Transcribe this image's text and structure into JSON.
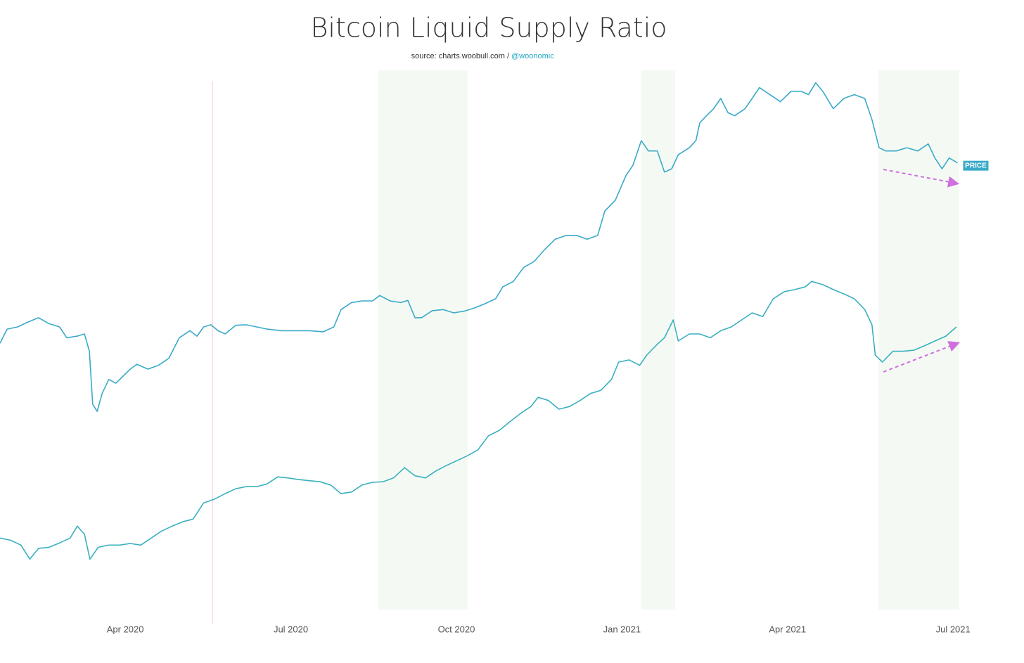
{
  "chart_data": {
    "type": "line",
    "title": "Bitcoin Liquid Supply Ratio",
    "source": "source: charts.woobull.com /",
    "source_handle": "@woonomic",
    "xlim": [
      1.73,
      19.38
    ],
    "ylim": [
      0,
      100
    ],
    "xticks": [
      {
        "value": 4,
        "label": "Apr 2020"
      },
      {
        "value": 7,
        "label": "Jul 2020"
      },
      {
        "value": 10,
        "label": "Oct 2020"
      },
      {
        "value": 13,
        "label": "Jan 2021"
      },
      {
        "value": 16,
        "label": "Apr 2021"
      },
      {
        "value": 19,
        "label": "Jul 2021"
      }
    ],
    "series": [
      {
        "name": "PRICE",
        "color": "#3aaac9",
        "x": [
          1.73,
          1.86,
          2.05,
          2.24,
          2.43,
          2.62,
          2.81,
          2.94,
          3.13,
          3.26,
          3.35,
          3.41,
          3.49,
          3.58,
          3.7,
          3.83,
          3.96,
          4.09,
          4.21,
          4.41,
          4.6,
          4.79,
          4.98,
          5.17,
          5.3,
          5.42,
          5.55,
          5.68,
          5.81,
          6.0,
          6.19,
          6.38,
          6.57,
          6.83,
          7.08,
          7.34,
          7.59,
          7.78,
          7.91,
          8.1,
          8.29,
          8.48,
          8.61,
          8.8,
          8.99,
          9.12,
          9.25,
          9.37,
          9.56,
          9.76,
          9.95,
          10.14,
          10.33,
          10.52,
          10.71,
          10.84,
          11.03,
          11.22,
          11.41,
          11.6,
          11.79,
          11.99,
          12.18,
          12.37,
          12.56,
          12.69,
          12.88,
          13.07,
          13.2,
          13.35,
          13.48,
          13.64,
          13.77,
          13.9,
          14.02,
          14.22,
          14.34,
          14.41,
          14.53,
          14.66,
          14.79,
          14.92,
          15.04,
          15.23,
          15.36,
          15.49,
          15.68,
          15.87,
          16.06,
          16.25,
          16.38,
          16.51,
          16.64,
          16.83,
          17.02,
          17.21,
          17.4,
          17.53,
          17.66,
          17.78,
          17.97,
          18.16,
          18.36,
          18.55,
          18.67,
          18.8,
          18.93,
          19.08
        ],
        "values": [
          49.6,
          52.2,
          52.6,
          53.5,
          54.3,
          53.2,
          52.6,
          50.6,
          50.9,
          51.3,
          48.1,
          38.3,
          37.0,
          40.3,
          42.9,
          42.2,
          43.5,
          44.8,
          45.7,
          44.8,
          45.5,
          46.8,
          50.6,
          51.9,
          50.9,
          52.6,
          53.0,
          51.9,
          51.3,
          52.9,
          53.0,
          52.6,
          52.2,
          51.9,
          51.9,
          51.9,
          51.7,
          52.6,
          55.8,
          57.1,
          57.4,
          57.4,
          58.4,
          57.4,
          57.1,
          57.5,
          54.3,
          54.3,
          55.6,
          55.8,
          55.2,
          55.5,
          56.1,
          56.9,
          57.8,
          60.0,
          61.0,
          63.6,
          64.7,
          66.9,
          68.8,
          69.5,
          69.5,
          68.8,
          69.5,
          74.0,
          76.0,
          80.5,
          82.5,
          87.0,
          85.1,
          85.1,
          81.2,
          81.8,
          84.4,
          85.7,
          87.0,
          90.3,
          91.6,
          92.9,
          94.8,
          92.2,
          91.6,
          92.9,
          94.8,
          96.8,
          95.5,
          94.2,
          96.1,
          96.1,
          95.5,
          97.7,
          96.1,
          92.9,
          94.8,
          95.5,
          94.8,
          90.9,
          85.7,
          85.1,
          85.1,
          85.7,
          85.1,
          86.4,
          83.8,
          81.8,
          83.8,
          82.9
        ]
      },
      {
        "color": "#3ab0bf",
        "x": [
          1.73,
          1.92,
          2.11,
          2.27,
          2.43,
          2.62,
          2.81,
          3.0,
          3.13,
          3.26,
          3.36,
          3.51,
          3.7,
          3.9,
          4.09,
          4.28,
          4.47,
          4.66,
          4.85,
          5.04,
          5.23,
          5.42,
          5.62,
          5.81,
          6.0,
          6.19,
          6.38,
          6.57,
          6.76,
          6.95,
          7.14,
          7.34,
          7.53,
          7.72,
          7.91,
          8.1,
          8.29,
          8.48,
          8.67,
          8.86,
          9.06,
          9.25,
          9.44,
          9.63,
          9.82,
          10.01,
          10.2,
          10.39,
          10.58,
          10.78,
          10.97,
          11.16,
          11.35,
          11.48,
          11.67,
          11.86,
          12.05,
          12.24,
          12.43,
          12.62,
          12.81,
          12.94,
          13.13,
          13.32,
          13.45,
          13.64,
          13.77,
          13.93,
          14.02,
          14.22,
          14.41,
          14.6,
          14.79,
          14.98,
          15.17,
          15.36,
          15.55,
          15.74,
          15.94,
          16.13,
          16.32,
          16.44,
          16.64,
          16.83,
          17.02,
          17.21,
          17.4,
          17.53,
          17.59,
          17.72,
          17.91,
          18.1,
          18.29,
          18.48,
          18.67,
          18.87,
          19.06
        ],
        "values": [
          13.6,
          13.2,
          12.3,
          9.7,
          11.7,
          11.9,
          12.7,
          13.6,
          15.8,
          14.3,
          9.7,
          11.9,
          12.3,
          12.3,
          12.6,
          12.3,
          13.6,
          14.9,
          15.8,
          16.6,
          17.1,
          20.1,
          20.8,
          21.8,
          22.7,
          23.1,
          23.1,
          23.6,
          24.9,
          24.7,
          24.4,
          24.2,
          24.0,
          23.4,
          21.8,
          22.1,
          23.4,
          23.9,
          24.0,
          24.7,
          26.6,
          25.1,
          24.7,
          26.0,
          27.0,
          27.9,
          28.8,
          29.9,
          32.5,
          33.5,
          35.1,
          36.6,
          37.9,
          39.6,
          39.0,
          37.4,
          37.9,
          39.0,
          40.3,
          40.9,
          42.9,
          46.1,
          46.5,
          45.5,
          47.4,
          49.4,
          50.6,
          53.9,
          50.0,
          51.3,
          51.3,
          50.6,
          51.9,
          52.6,
          53.9,
          55.2,
          54.5,
          57.8,
          59.1,
          59.5,
          60.0,
          61.0,
          60.4,
          59.5,
          58.7,
          57.8,
          55.8,
          53.0,
          47.4,
          46.1,
          48.1,
          48.1,
          48.3,
          49.1,
          50.0,
          50.9,
          52.6
        ]
      }
    ]
  }
}
